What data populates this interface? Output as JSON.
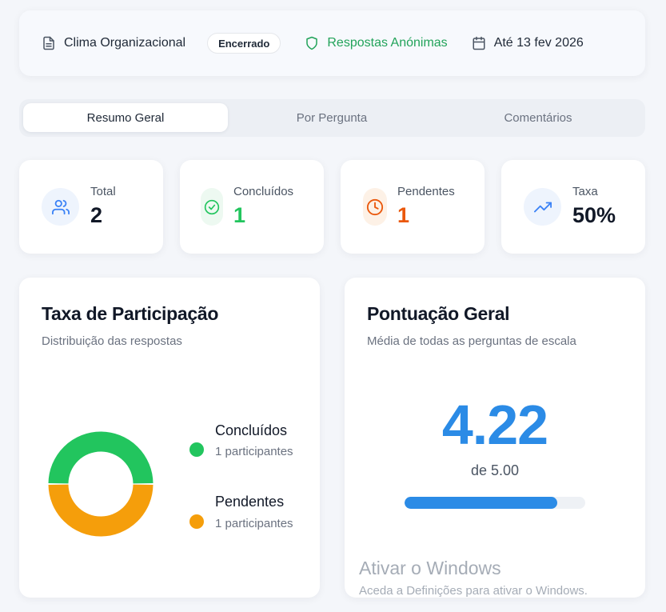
{
  "header": {
    "survey_title": "Clima Organizacional",
    "status_badge": "Encerrado",
    "anonymous_label": "Respostas Anónimas",
    "deadline": "Até 13 fev 2026"
  },
  "tabs": [
    {
      "label": "Resumo Geral",
      "active": true
    },
    {
      "label": "Por Pergunta",
      "active": false
    },
    {
      "label": "Comentários",
      "active": false
    }
  ],
  "stats": [
    {
      "label": "Total",
      "value": "2",
      "icon": "users-icon",
      "color": "#3b82f6"
    },
    {
      "label": "Concluídos",
      "value": "1",
      "icon": "check-circle-icon",
      "color": "#22c55e"
    },
    {
      "label": "Pendentes",
      "value": "1",
      "icon": "clock-icon",
      "color": "#ea580c"
    },
    {
      "label": "Taxa",
      "value": "50%",
      "icon": "trending-up-icon",
      "color": "#3b82f6"
    }
  ],
  "participation": {
    "title": "Taxa de Participação",
    "subtitle": "Distribuição das respostas",
    "chart_data": {
      "type": "pie",
      "categories": [
        "Concluídos",
        "Pendentes"
      ],
      "values": [
        1,
        1
      ],
      "colors": [
        "#22c55e",
        "#f59e0b"
      ]
    },
    "legend": [
      {
        "name": "Concluídos",
        "count": "1 participantes",
        "color": "#22c55e"
      },
      {
        "name": "Pendentes",
        "count": "1 participantes",
        "color": "#f59e0b"
      }
    ]
  },
  "score": {
    "title": "Pontuação Geral",
    "subtitle": "Média de todas as perguntas de escala",
    "value": "4.22",
    "max_label": "de 5.00",
    "fraction": 0.844
  },
  "watermark": {
    "title": "Ativar o Windows",
    "subtitle": "Aceda a Definições para ativar o Windows."
  }
}
